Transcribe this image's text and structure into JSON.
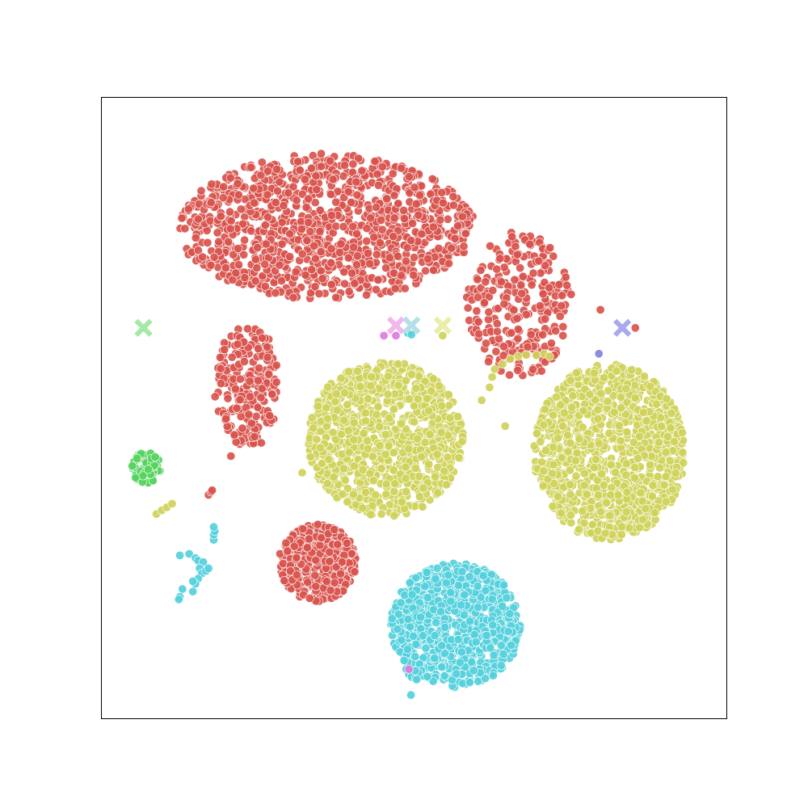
{
  "chart_data": {
    "type": "scatter",
    "title": "",
    "xlabel": "",
    "ylabel": "",
    "xlim": [
      -60,
      60
    ],
    "ylim": [
      -60,
      60
    ],
    "grid": false,
    "legend": "none",
    "axis_ticks": false,
    "colors": {
      "red": "#d9544d",
      "yellow": "#cfd35a",
      "cyan": "#55d0dc",
      "green": "#56d25e",
      "blue": "#7f86dc",
      "pink": "#e07ae0"
    },
    "series": [
      {
        "color": "red",
        "clusters": [
          {
            "cx": -17.0,
            "cy": 35.0,
            "rx": 28.0,
            "ry": 14.0,
            "n": 1100,
            "scatter": true
          },
          {
            "cx": 20.0,
            "cy": 20.0,
            "rx": 10.0,
            "ry": 14.0,
            "n": 260,
            "scatter": true
          },
          {
            "cx": -32.0,
            "cy": 4.0,
            "rx": 6.0,
            "ry": 12.0,
            "n": 220,
            "scatter": true
          },
          {
            "cx": -18.5,
            "cy": -30.0,
            "rx": 7.5,
            "ry": 7.5,
            "n": 480
          }
        ]
      },
      {
        "color": "yellow",
        "clusters": [
          {
            "cx": -5.5,
            "cy": -6.0,
            "rx": 15.0,
            "ry": 15.0,
            "n": 1000
          },
          {
            "cx": 37.5,
            "cy": -8.5,
            "rx": 14.5,
            "ry": 17.0,
            "n": 1150
          }
        ]
      },
      {
        "color": "cyan",
        "clusters": [
          {
            "cx": 8.0,
            "cy": -42.0,
            "rx": 12.5,
            "ry": 12.0,
            "n": 850
          }
        ]
      },
      {
        "color": "green",
        "clusters": [
          {
            "cx": -51.5,
            "cy": -11.5,
            "rx": 2.8,
            "ry": 3.0,
            "n": 70
          }
        ]
      }
    ],
    "extra_points": [
      {
        "x": -49.5,
        "y": -20.5,
        "color": "yellow"
      },
      {
        "x": -48.5,
        "y": -19.8,
        "color": "yellow"
      },
      {
        "x": -47.5,
        "y": -19.2,
        "color": "yellow"
      },
      {
        "x": -46.5,
        "y": -18.5,
        "color": "yellow"
      },
      {
        "x": -39.5,
        "y": -16.8,
        "color": "red"
      },
      {
        "x": -39.0,
        "y": -16.2,
        "color": "red"
      },
      {
        "x": -38.8,
        "y": -15.9,
        "color": "red"
      },
      {
        "x": -35.2,
        "y": -9.3,
        "color": "red"
      },
      {
        "x": 15.5,
        "y": 7.5,
        "color": "yellow"
      },
      {
        "x": 17.0,
        "y": 8.5,
        "color": "yellow"
      },
      {
        "x": 18.5,
        "y": 9.5,
        "color": "yellow"
      },
      {
        "x": 20.0,
        "y": 10.0,
        "color": "yellow"
      },
      {
        "x": 21.5,
        "y": 10.3,
        "color": "yellow"
      },
      {
        "x": 23.5,
        "y": 10.2,
        "color": "yellow"
      },
      {
        "x": 25.0,
        "y": 10.5,
        "color": "yellow"
      },
      {
        "x": 26.0,
        "y": 10.0,
        "color": "yellow"
      },
      {
        "x": 13.0,
        "y": 1.5,
        "color": "yellow"
      },
      {
        "x": 14.5,
        "y": 4.0,
        "color": "yellow"
      },
      {
        "x": 15.0,
        "y": 6.0,
        "color": "yellow"
      },
      {
        "x": 17.5,
        "y": -3.5,
        "color": "yellow"
      },
      {
        "x": -21.5,
        "y": -12.5,
        "color": "yellow"
      },
      {
        "x": -45.0,
        "y": -28.5,
        "color": "cyan"
      },
      {
        "x": -43.2,
        "y": -28.2,
        "color": "cyan"
      },
      {
        "x": -42.0,
        "y": -29.0,
        "color": "cyan"
      },
      {
        "x": -41.5,
        "y": -29.5,
        "color": "cyan"
      },
      {
        "x": -40.5,
        "y": -29.8,
        "color": "cyan"
      },
      {
        "x": -41.2,
        "y": -31.0,
        "color": "cyan"
      },
      {
        "x": -40.8,
        "y": -32.0,
        "color": "cyan"
      },
      {
        "x": -41.5,
        "y": -33.0,
        "color": "cyan"
      },
      {
        "x": -40.0,
        "y": -31.5,
        "color": "cyan"
      },
      {
        "x": -39.5,
        "y": -31.0,
        "color": "cyan"
      },
      {
        "x": -42.0,
        "y": -34.0,
        "color": "cyan"
      },
      {
        "x": -42.5,
        "y": -33.5,
        "color": "cyan"
      },
      {
        "x": -44.5,
        "y": -35.0,
        "color": "cyan"
      },
      {
        "x": -45.0,
        "y": -36.5,
        "color": "cyan"
      },
      {
        "x": -45.2,
        "y": -37.0,
        "color": "cyan"
      },
      {
        "x": -42.5,
        "y": -35.5,
        "color": "cyan"
      },
      {
        "x": -38.5,
        "y": -25.5,
        "color": "cyan"
      },
      {
        "x": -38.5,
        "y": -24.5,
        "color": "cyan"
      },
      {
        "x": -38.3,
        "y": -23.8,
        "color": "cyan"
      },
      {
        "x": -38.5,
        "y": -23.0,
        "color": "cyan"
      },
      {
        "x": -1.5,
        "y": -50.5,
        "color": "cyan"
      },
      {
        "x": -1.0,
        "y": -51.5,
        "color": "cyan"
      },
      {
        "x": -0.5,
        "y": -52.0,
        "color": "cyan"
      },
      {
        "x": 0.3,
        "y": -52.2,
        "color": "cyan"
      },
      {
        "x": 0.8,
        "y": -51.2,
        "color": "cyan"
      },
      {
        "x": 0.2,
        "y": -50.8,
        "color": "cyan"
      },
      {
        "x": 0.5,
        "y": -52.5,
        "color": "cyan"
      },
      {
        "x": -0.6,
        "y": -55.5,
        "color": "cyan"
      },
      {
        "x": -1.0,
        "y": -50.5,
        "color": "pink"
      },
      {
        "x": 35.5,
        "y": 10.5,
        "color": "blue"
      },
      {
        "x": 35.8,
        "y": 19.0,
        "color": "red"
      },
      {
        "x": 42.5,
        "y": 15.5,
        "color": "red"
      },
      {
        "x": -5.8,
        "y": 14.0,
        "color": "pink"
      },
      {
        "x": -3.5,
        "y": 14.0,
        "color": "pink"
      },
      {
        "x": -1.2,
        "y": 14.5,
        "color": "cyan"
      },
      {
        "x": -0.5,
        "y": 14.2,
        "color": "cyan"
      },
      {
        "x": 5.5,
        "y": 14.0,
        "color": "yellow"
      }
    ],
    "markers": [
      {
        "x": -52.0,
        "y": 15.5,
        "color": "#a6e8a6",
        "shape": "x"
      },
      {
        "x": -3.5,
        "y": 16.0,
        "color": "#f3b6ee",
        "shape": "x"
      },
      {
        "x": -0.5,
        "y": 16.0,
        "color": "#b5dfe8",
        "shape": "x"
      },
      {
        "x": 5.5,
        "y": 16.0,
        "color": "#e9eeaa",
        "shape": "x"
      },
      {
        "x": 40.0,
        "y": 15.5,
        "color": "#a9a9ee",
        "shape": "x"
      }
    ]
  }
}
